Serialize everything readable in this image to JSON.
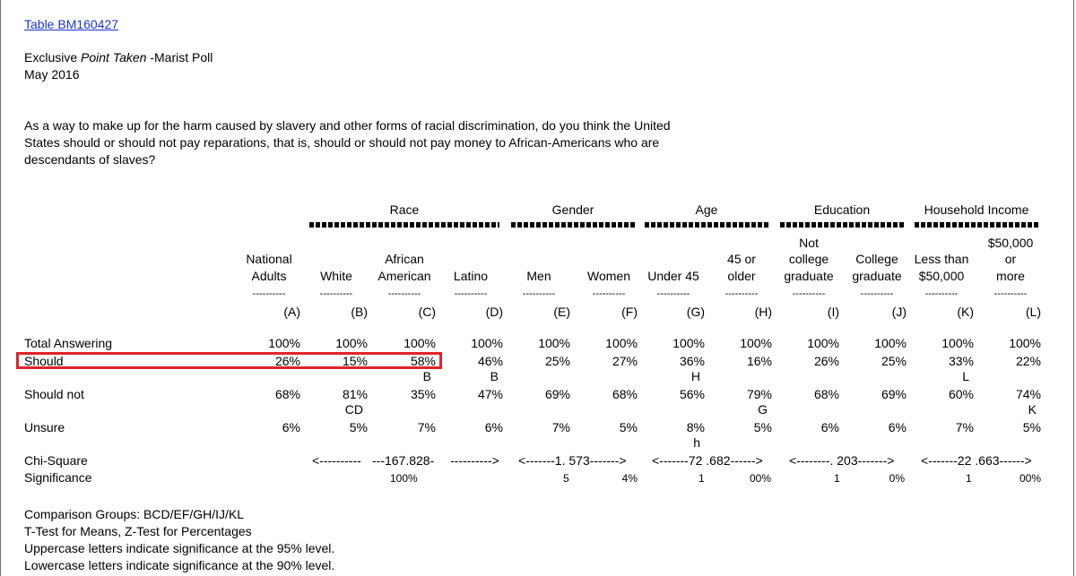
{
  "header": {
    "table_link": "Table BM160427",
    "poll_prefix": "Exclusive ",
    "poll_italic": "Point Taken",
    "poll_suffix": " -Marist Poll",
    "date": "May 2016"
  },
  "question": {
    "line1": "As a way to make up for the harm caused by slavery and other forms of racial discrimination, do you think the United",
    "line2": "States should or should not pay reparations, that is, should or should not pay money to African-Americans who are",
    "line3": "descendants of slaves?"
  },
  "groups": {
    "race": "Race",
    "gender": "Gender",
    "age": "Age",
    "education": "Education",
    "income": "Household Income"
  },
  "columns": [
    {
      "l1": "",
      "l2": "National",
      "l3": "Adults",
      "letter": "(A)"
    },
    {
      "l1": "",
      "l2": "",
      "l3": "White",
      "letter": "(B)"
    },
    {
      "l1": "",
      "l2": "African",
      "l3": "American",
      "letter": "(C)"
    },
    {
      "l1": "",
      "l2": "",
      "l3": "Latino",
      "letter": "(D)"
    },
    {
      "l1": "",
      "l2": "",
      "l3": "Men",
      "letter": "(E)"
    },
    {
      "l1": "",
      "l2": "",
      "l3": "Women",
      "letter": "(F)"
    },
    {
      "l1": "",
      "l2": "",
      "l3": "Under 45",
      "letter": "(G)"
    },
    {
      "l1": "",
      "l2": "45 or",
      "l3": "older",
      "letter": "(H)"
    },
    {
      "l1": "Not",
      "l2": "college",
      "l3": "graduate",
      "letter": "(I)"
    },
    {
      "l1": "",
      "l2": "College",
      "l3": "graduate",
      "letter": "(J)"
    },
    {
      "l1": "",
      "l2": "Less than",
      "l3": "$50,000",
      "letter": "(K)"
    },
    {
      "l1": "$50,000",
      "l2": "or",
      "l3": "more",
      "letter": "(L)"
    }
  ],
  "dashes": "----------",
  "rows": [
    {
      "label": "Total Answering",
      "values": [
        "100%",
        "100%",
        "100%",
        "100%",
        "100%",
        "100%",
        "100%",
        "100%",
        "100%",
        "100%",
        "100%",
        "100%"
      ],
      "sig": []
    },
    {
      "label": "Should",
      "values": [
        "26%",
        "15%",
        "58%",
        "46%",
        "25%",
        "27%",
        "36%",
        "16%",
        "26%",
        "25%",
        "33%",
        "22%"
      ],
      "sig": [
        "",
        "",
        "B",
        "B",
        "",
        "",
        "H",
        "",
        "",
        "",
        "L",
        ""
      ]
    },
    {
      "label": "Should not",
      "values": [
        "68%",
        "81%",
        "35%",
        "47%",
        "69%",
        "68%",
        "56%",
        "79%",
        "68%",
        "69%",
        "60%",
        "74%"
      ],
      "sig": [
        "",
        "CD",
        "",
        "",
        "",
        "",
        "",
        "G",
        "",
        "",
        "",
        "K"
      ]
    },
    {
      "label": "Unsure",
      "values": [
        "6%",
        "5%",
        "7%",
        "6%",
        "7%",
        "5%",
        "8%",
        "5%",
        "6%",
        "6%",
        "7%",
        "5%"
      ],
      "sig": [
        "",
        "",
        "",
        "",
        "",
        "",
        "h",
        "",
        "",
        "",
        "",
        ""
      ]
    }
  ],
  "chi_square": {
    "label": "Chi-Square",
    "sig_label": "Significance",
    "race": {
      "left": "<----------",
      "mid": "---167.828-",
      "right": "---------->",
      "sig": "100%"
    },
    "gender": {
      "text": "<-------1. 573------->",
      "sig_left": "5",
      "sig_right": "4%"
    },
    "age": {
      "text": "<-------72 .682------>",
      "sig_left": "1",
      "sig_right": "00%"
    },
    "education": {
      "text": "<--------. 203------->",
      "sig_left": "1",
      "sig_right": "0%"
    },
    "income": {
      "text": "<-------22 .663------>",
      "sig_left": "1",
      "sig_right": "00%"
    }
  },
  "footer": {
    "line1": "Comparison Groups: BCD/EF/GH/IJ/KL",
    "line2": "T-Test for Means, Z-Test for Percentages",
    "line3": "Uppercase letters indicate significance at the 95% level.",
    "line4": "Lowercase letters indicate significance at the 90% level."
  },
  "colors": {
    "highlight": "#e0232b",
    "link": "#1a33d6"
  }
}
